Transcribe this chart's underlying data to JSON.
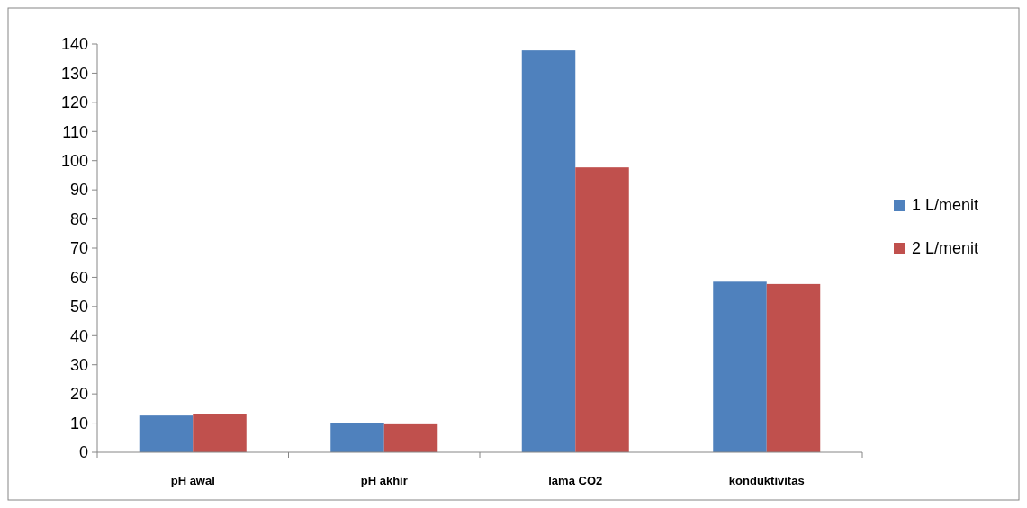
{
  "chart_data": {
    "type": "bar",
    "categories": [
      "pH awal",
      "pH akhir",
      "lama CO2",
      "konduktivitas"
    ],
    "series": [
      {
        "name": "1 L/menit",
        "color": "#4f81bd",
        "values": [
          12.6,
          9.9,
          137.8,
          58.5
        ]
      },
      {
        "name": "2 L/menit",
        "color": "#c0504d",
        "values": [
          13.0,
          9.6,
          97.7,
          57.7
        ]
      }
    ],
    "ylim": [
      0,
      140
    ],
    "yticks": [
      0,
      10,
      20,
      30,
      40,
      50,
      60,
      70,
      80,
      90,
      100,
      110,
      120,
      130,
      140
    ],
    "grid": false,
    "legend": "right"
  }
}
